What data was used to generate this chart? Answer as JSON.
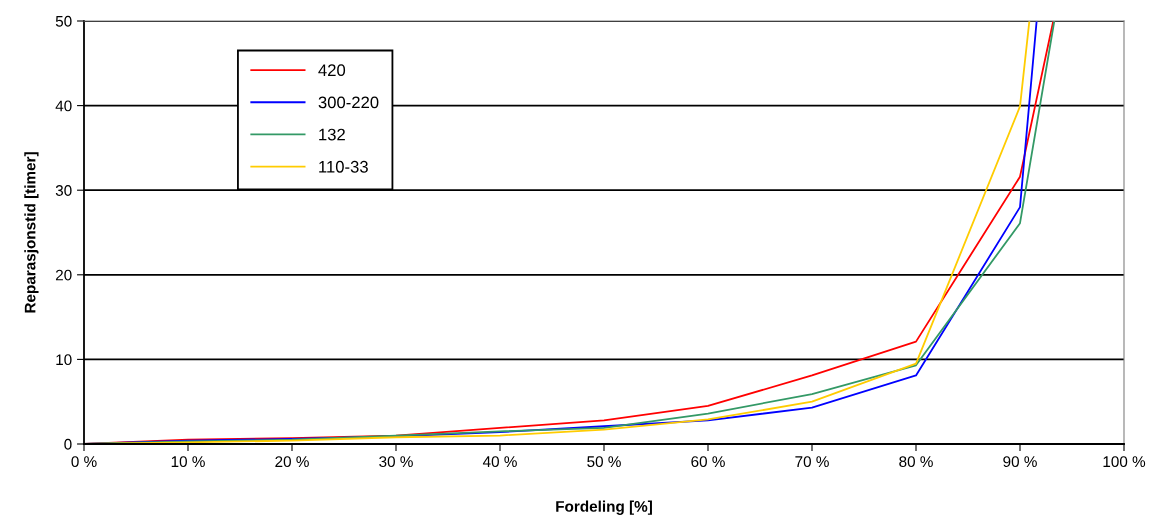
{
  "chart_data": {
    "type": "line",
    "xlabel": "Fordeling [%]",
    "ylabel": "Reparasjonstid [timer]",
    "xlim": [
      0,
      100
    ],
    "ylim": [
      0,
      50
    ],
    "xticks": [
      {
        "value": 0,
        "label": "0 %"
      },
      {
        "value": 10,
        "label": "10 %"
      },
      {
        "value": 20,
        "label": "20 %"
      },
      {
        "value": 30,
        "label": "30 %"
      },
      {
        "value": 40,
        "label": "40 %"
      },
      {
        "value": 50,
        "label": "50 %"
      },
      {
        "value": 60,
        "label": "60 %"
      },
      {
        "value": 70,
        "label": "70 %"
      },
      {
        "value": 80,
        "label": "80 %"
      },
      {
        "value": 90,
        "label": "90 %"
      },
      {
        "value": 100,
        "label": "100 %"
      }
    ],
    "yticks": [
      0,
      10,
      20,
      30,
      40,
      50
    ],
    "grid": "y",
    "legend": "top left",
    "marker": "none",
    "line_style": "solid",
    "series": [
      {
        "name": "420",
        "color": "#ff0000",
        "x": [
          0,
          10,
          20,
          30,
          40,
          50,
          60,
          70,
          80,
          90,
          93.2
        ],
        "values": [
          0,
          0.5,
          0.7,
          1.0,
          1.9,
          2.8,
          4.5,
          8.1,
          12.1,
          31.6,
          50
        ]
      },
      {
        "name": "300-220",
        "color": "#0000ff",
        "x": [
          0,
          10,
          20,
          30,
          40,
          50,
          60,
          70,
          80,
          90,
          91.6
        ],
        "values": [
          0,
          0.4,
          0.6,
          0.9,
          1.4,
          2.1,
          2.8,
          4.3,
          8.1,
          28.0,
          50
        ]
      },
      {
        "name": "132",
        "color": "#339966",
        "x": [
          0,
          10,
          20,
          30,
          40,
          50,
          60,
          70,
          80,
          90,
          93.3
        ],
        "values": [
          0,
          0.3,
          0.5,
          1.0,
          1.5,
          1.9,
          3.6,
          5.9,
          9.3,
          26.1,
          50
        ]
      },
      {
        "name": "110-33",
        "color": "#ffcc00",
        "x": [
          0,
          10,
          20,
          30,
          40,
          50,
          60,
          70,
          80,
          90,
          90.9
        ],
        "values": [
          0,
          0.2,
          0.4,
          0.8,
          1.0,
          1.7,
          2.9,
          5.0,
          9.5,
          39.9,
          50
        ]
      }
    ]
  }
}
